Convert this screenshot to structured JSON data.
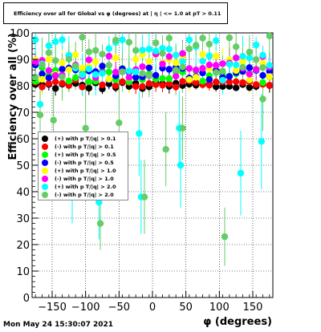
{
  "chart_data": {
    "type": "scatter",
    "title": "Efficiency over all for Global vs φ (degrees) at | η | <= 1.0 at pT > 0.11",
    "xlabel": "φ (degrees)",
    "ylabel": "Efficiency over all (%)",
    "xlim": [
      -180,
      180
    ],
    "ylim": [
      0,
      100
    ],
    "x_ticks": [
      "−150",
      "−100",
      "−50",
      "0",
      "50",
      "100",
      "150"
    ],
    "x_tick_values": [
      -150,
      -100,
      -50,
      0,
      50,
      100,
      150
    ],
    "y_ticks": [
      "0",
      "10",
      "20",
      "30",
      "40",
      "50",
      "60",
      "70",
      "80",
      "90",
      "100"
    ],
    "y_tick_values": [
      0,
      10,
      20,
      30,
      40,
      50,
      60,
      70,
      80,
      90,
      100
    ],
    "grid": true,
    "legend_position": "left-middle",
    "series": [
      {
        "name": "(+) with p T/|q| > 0.1",
        "color": "#000000",
        "base": 80,
        "spread": 1.5,
        "err": 2
      },
      {
        "name": "(-) with p T/|q| > 0.1",
        "color": "#ff0000",
        "base": 81,
        "spread": 1.5,
        "err": 2
      },
      {
        "name": "(+) with p T/|q| > 0.5",
        "color": "#00ff00",
        "base": 84,
        "spread": 3,
        "err": 3
      },
      {
        "name": "(-) with p T/|q| > 0.5",
        "color": "#0000ff",
        "base": 85,
        "spread": 3,
        "err": 3
      },
      {
        "name": "(+) with p T/|q| > 1.0",
        "color": "#ffff00",
        "base": 87,
        "spread": 5,
        "err": 4
      },
      {
        "name": "(-) with p T/|q| > 1.0",
        "color": "#ff00ff",
        "base": 88,
        "spread": 5,
        "err": 4
      },
      {
        "name": "(+) with p T/|q| > 2.0",
        "color": "#00ffff",
        "base": 90,
        "spread": 8,
        "err": 6
      },
      {
        "name": "(-) with p T/|q| > 2.0",
        "color": "#66cc66",
        "base": 91,
        "spread": 9,
        "err": 7
      }
    ],
    "outliers": [
      {
        "series": 6,
        "x": -168,
        "y": 73,
        "err": 12
      },
      {
        "series": 6,
        "x": -120,
        "y": 38,
        "err": 10
      },
      {
        "series": 6,
        "x": -80,
        "y": 36,
        "err": 14
      },
      {
        "series": 6,
        "x": -20,
        "y": 62,
        "err": 16
      },
      {
        "series": 6,
        "x": -17,
        "y": 38,
        "err": 14
      },
      {
        "series": 6,
        "x": 40,
        "y": 64,
        "err": 14
      },
      {
        "series": 6,
        "x": 42,
        "y": 50,
        "err": 16
      },
      {
        "series": 6,
        "x": 132,
        "y": 47,
        "err": 16
      },
      {
        "series": 6,
        "x": 163,
        "y": 59,
        "err": 18
      },
      {
        "series": 7,
        "x": -168,
        "y": 69,
        "err": 14
      },
      {
        "series": 7,
        "x": -148,
        "y": 67,
        "err": 12
      },
      {
        "series": 7,
        "x": -100,
        "y": 64,
        "err": 28
      },
      {
        "series": 7,
        "x": -78,
        "y": 28,
        "err": 10
      },
      {
        "series": 7,
        "x": -50,
        "y": 66,
        "err": 18
      },
      {
        "series": 7,
        "x": -12,
        "y": 38,
        "err": 14
      },
      {
        "series": 7,
        "x": 20,
        "y": 56,
        "err": 14
      },
      {
        "series": 7,
        "x": 45,
        "y": 64,
        "err": 12
      },
      {
        "series": 7,
        "x": 108,
        "y": 23,
        "err": 11
      },
      {
        "series": 7,
        "x": 165,
        "y": 75,
        "err": 12
      }
    ]
  },
  "timestamp": "Mon May 24 15:30:07 2021"
}
